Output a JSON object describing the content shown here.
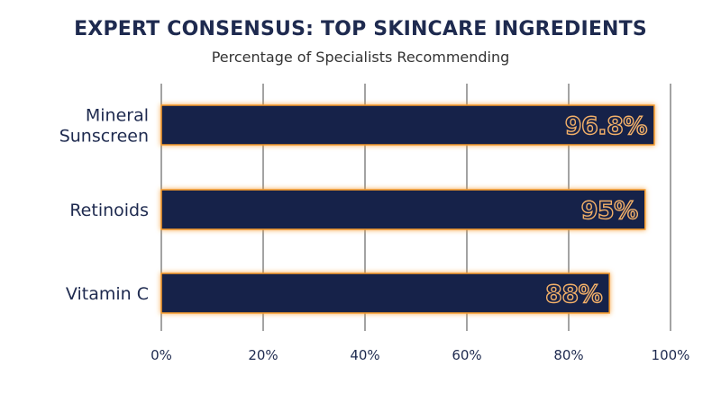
{
  "colors": {
    "bar_fill": "#172449",
    "bar_glow": "#f59a2c",
    "value_label": "#f3b068",
    "gridline": "#666666",
    "title": "#1e2a4f"
  },
  "chart_data": {
    "type": "bar",
    "orientation": "horizontal",
    "title": "EXPERT CONSENSUS: TOP SKINCARE INGREDIENTS",
    "subtitle": "Percentage of Specialists Recommending",
    "xlabel": "",
    "ylabel": "",
    "categories": [
      [
        "Mineral",
        "Sunscreen"
      ],
      [
        "Retinoids"
      ],
      [
        "Vitamin C"
      ]
    ],
    "values": [
      96.8,
      95,
      88
    ],
    "value_labels": [
      "96.8%",
      "95%",
      "88%"
    ],
    "xlim": [
      0,
      100
    ],
    "x_ticks": [
      0,
      20,
      40,
      60,
      80,
      100
    ],
    "x_tick_labels": [
      "0%",
      "20%",
      "40%",
      "60%",
      "80%",
      "100%"
    ],
    "grid": true,
    "legend": "none"
  }
}
